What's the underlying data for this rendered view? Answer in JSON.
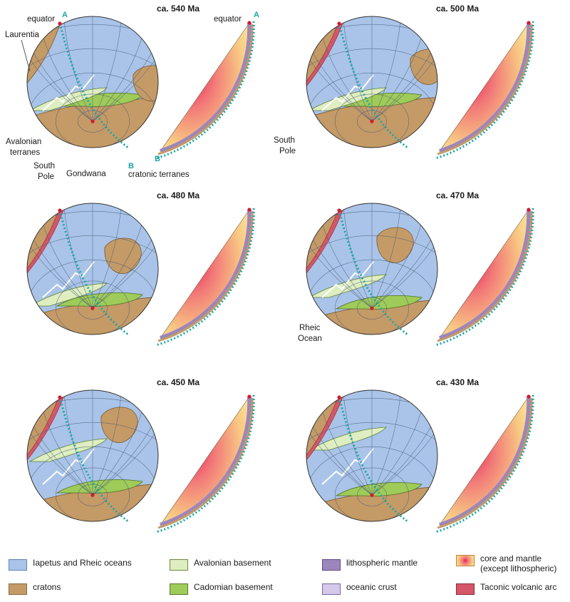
{
  "panels": [
    {
      "title": "ca. 540 Ma"
    },
    {
      "title": "ca. 500 Ma"
    },
    {
      "title": "ca. 480 Ma"
    },
    {
      "title": "ca. 470 Ma"
    },
    {
      "title": "ca. 450 Ma"
    },
    {
      "title": "ca. 430 Ma"
    }
  ],
  "annotations": {
    "equator": "equator",
    "equator_2": "equator",
    "laurentia": "Laurentia",
    "avalonian_1": "Avalonian",
    "avalonian_2": "terranes",
    "south_pole_1": "South",
    "south_pole_2": "Pole",
    "south_pole_r1": "South",
    "south_pole_r2": "Pole",
    "gondwana": "Gondwana",
    "cratonic": "cratonic terranes",
    "rheic_1": "Rheic",
    "rheic_2": "Ocean",
    "A": "A",
    "A_2": "A",
    "B": "B",
    "B_2": "B"
  },
  "legend": [
    {
      "label": "Iapetus and Rheic oceans",
      "color": "#a9c4e8"
    },
    {
      "label": "cratons",
      "color": "#c49a66"
    },
    {
      "label": "Avalonian basement",
      "color": "#deeec0"
    },
    {
      "label": "Cadomian basement",
      "color": "#9fcb58"
    },
    {
      "label": "lithospheric mantle",
      "color": "#9d86bb"
    },
    {
      "label": "oceanic crust",
      "color": "#d6c8ea"
    },
    {
      "label": "core and mantle",
      "label2": "(except lithospheric)",
      "color": "#f08080"
    },
    {
      "label": "Taconic volcanic arc",
      "color": "#d45668"
    }
  ],
  "colors": {
    "ocean": "#a9c4e8",
    "craton": "#c49a66",
    "avalonia": "#deeec0",
    "cadomia": "#9fcb58",
    "lith_mantle": "#9d86bb",
    "oceanic_crust": "#d6c8ea",
    "arc": "#d45668",
    "guide": "#19a6a6"
  }
}
